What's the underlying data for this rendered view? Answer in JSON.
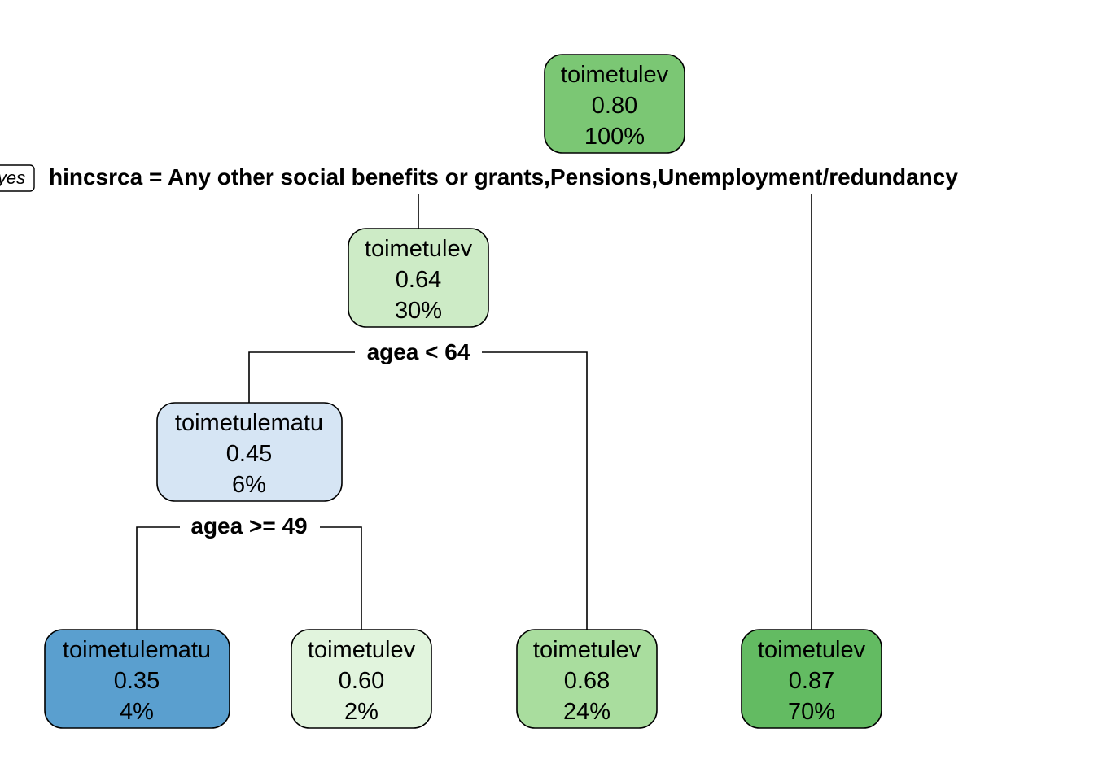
{
  "tree": {
    "yes_label": "yes",
    "nodes": [
      {
        "id": "root",
        "class": "toimetulev",
        "value": "0.80",
        "percent": "100%",
        "color": "#7bc774"
      },
      {
        "id": "n2",
        "class": "toimetulev",
        "value": "0.64",
        "percent": "30%",
        "color": "#cdebc6"
      },
      {
        "id": "n4",
        "class": "toimetulematu",
        "value": "0.45",
        "percent": "6%",
        "color": "#d6e5f4"
      },
      {
        "id": "n8",
        "class": "toimetulematu",
        "value": "0.35",
        "percent": "4%",
        "color": "#5a9fcf"
      },
      {
        "id": "n9",
        "class": "toimetulev",
        "value": "0.60",
        "percent": "2%",
        "color": "#e1f4dd"
      },
      {
        "id": "n5",
        "class": "toimetulev",
        "value": "0.68",
        "percent": "24%",
        "color": "#a9dd9e"
      },
      {
        "id": "n3",
        "class": "toimetulev",
        "value": "0.87",
        "percent": "70%",
        "color": "#63bb62"
      }
    ],
    "splits": [
      {
        "id": "s1",
        "label": "hincsrca = Any other social benefits or grants,Pensions,Unemployment/redundancy"
      },
      {
        "id": "s2",
        "label": "agea < 64"
      },
      {
        "id": "s3",
        "label": "agea >= 49"
      }
    ]
  }
}
